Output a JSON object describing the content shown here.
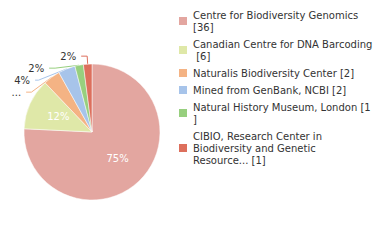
{
  "chart_data": {
    "type": "pie",
    "categories": [
      "Centre for Biodiversity Genomics [36]",
      "Canadian Centre for DNA Barcoding [6]",
      "Naturalis Biodiversity Center [2]",
      "Mined from GenBank, NCBI [2]",
      "Natural History Museum, London [1]",
      "CIBIO, Research Center in Biodiversity and Genetic Resource... [1]"
    ],
    "values": [
      75,
      12,
      4,
      4,
      2,
      2
    ],
    "value_labels": [
      "75%",
      "12%",
      "4%",
      "4%",
      "2%",
      "2%"
    ],
    "colors": [
      "#e3a6a0",
      "#dfe8a8",
      "#f4b384",
      "#a7c4ea",
      "#97cf7e",
      "#dd6f5c"
    ],
    "data_labels": true,
    "legend": "right"
  }
}
